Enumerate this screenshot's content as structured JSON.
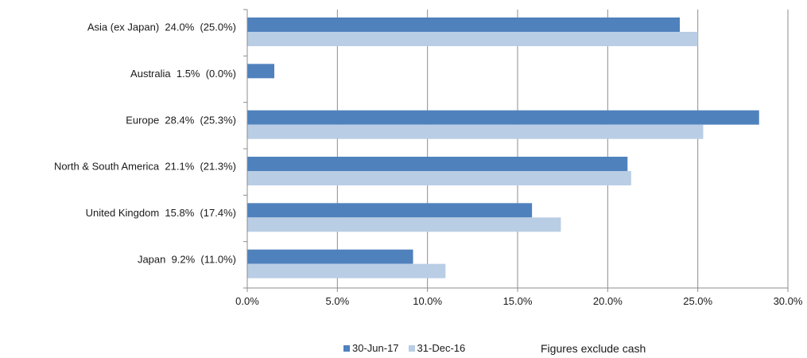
{
  "chart_data": {
    "type": "bar",
    "orientation": "horizontal",
    "categories": [
      "Asia (ex Japan)  24.0%  (25.0%)",
      "Australia  1.5%  (0.0%)",
      "Europe  28.4%  (25.3%)",
      "North & South America  21.1%  (21.3%)",
      "United Kingdom  15.8%  (17.4%)",
      "Japan  9.2%  (11.0%)"
    ],
    "series": [
      {
        "name": "30-Jun-17",
        "color": "#4f81bd",
        "values": [
          24.0,
          1.5,
          28.4,
          21.1,
          15.8,
          9.2
        ]
      },
      {
        "name": "31-Dec-16",
        "color": "#b9cde5",
        "values": [
          25.0,
          0.0,
          25.3,
          21.3,
          17.4,
          11.0
        ]
      }
    ],
    "xlim": [
      0,
      30
    ],
    "xticks": [
      0,
      5,
      10,
      15,
      20,
      25,
      30
    ],
    "xtick_labels": [
      "0.0%",
      "5.0%",
      "10.0%",
      "15.0%",
      "20.0%",
      "25.0%",
      "30.0%"
    ],
    "grid": "vertical",
    "legend_position": "bottom"
  },
  "note": "Figures exclude cash"
}
